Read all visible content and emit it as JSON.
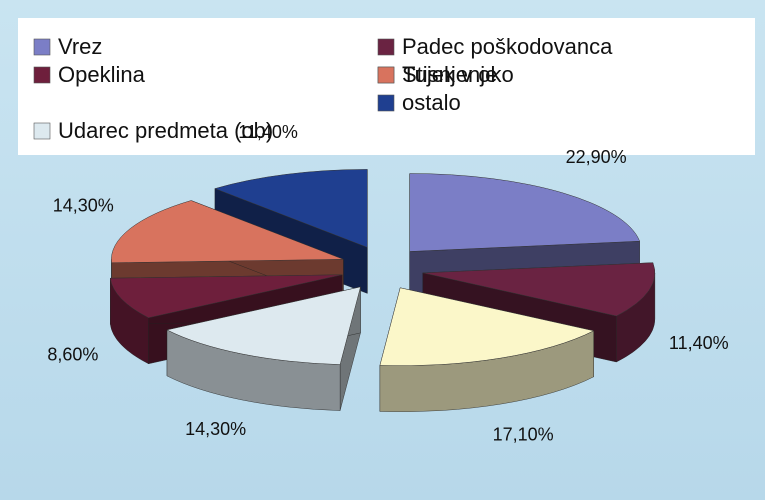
{
  "chart_data": {
    "type": "pie3d",
    "categories": [
      "Vrez",
      "Padec poškodovanca",
      "Tujek v oko",
      "Udarec predmeta (ob)",
      "Opeklina",
      "Stisnjenje",
      "ostalo"
    ],
    "values": [
      22.9,
      11.4,
      17.1,
      14.3,
      8.6,
      14.3,
      11.4
    ],
    "value_labels": [
      "22,90%",
      "11,40%",
      "17,10%",
      "14,30%",
      "8,60%",
      "14,30%",
      "11,40%"
    ],
    "colors": [
      "#7b7ec6",
      "#6a2342",
      "#fbf7c9",
      "#dde9ef",
      "#6e1f3c",
      "#d8735e",
      "#1f3f90"
    ],
    "legend": "top"
  }
}
